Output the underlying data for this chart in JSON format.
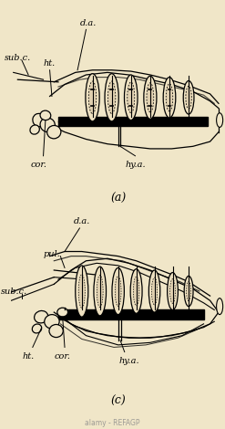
{
  "background_color": "#f0e6c8",
  "title_a": "(a)",
  "title_c": "(c)",
  "watermark": "alamy - REFAGP",
  "labels_a": {
    "da": "d.a.",
    "subc": "sub.c.",
    "ht": "ht.",
    "cor": "cor.",
    "hya": "hy.a."
  },
  "labels_c": {
    "da": "d.a.",
    "pul": "pul.",
    "subc": "sub.c.",
    "ht": "ht.",
    "cor": "cor.",
    "hya": "hy.a."
  },
  "fig_width": 2.47,
  "fig_height": 4.7,
  "dpi": 100
}
